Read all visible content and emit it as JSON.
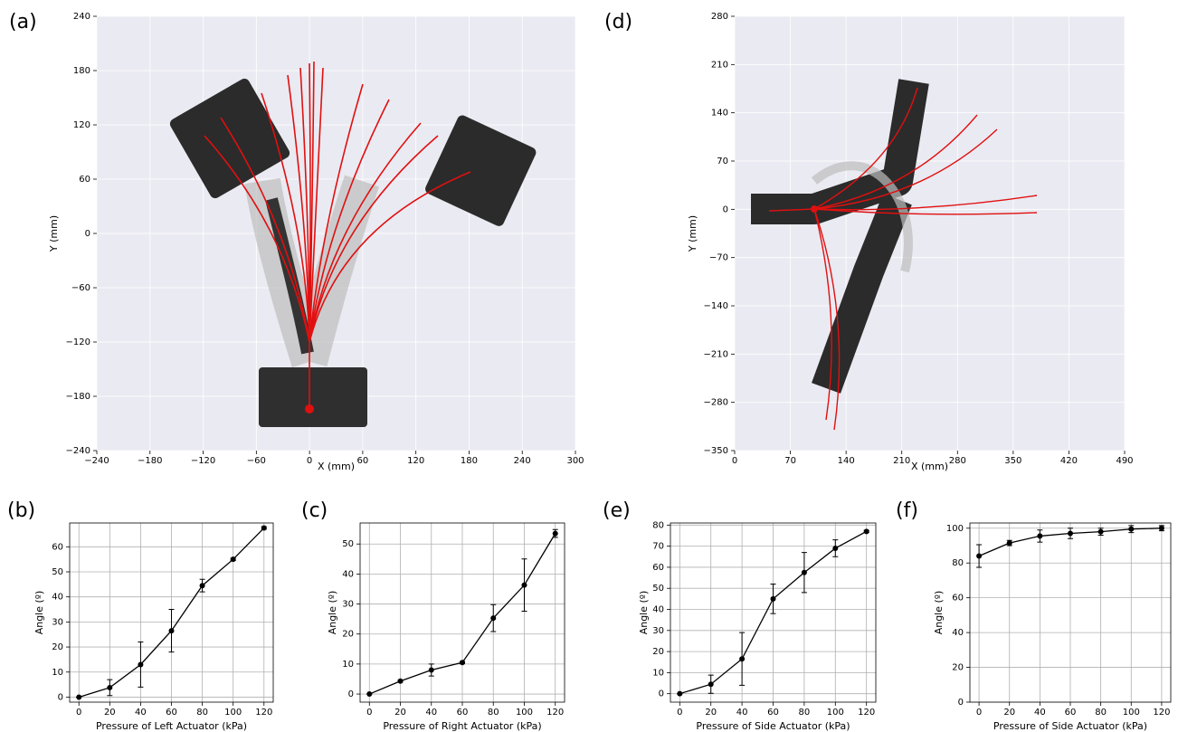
{
  "chart_data": [
    {
      "type": "image",
      "label": "(a)",
      "xlabel": "X (mm)",
      "ylabel": "Y (mm)",
      "xlim": [
        -240,
        300
      ],
      "ylim": [
        -240,
        240
      ],
      "xticks": [
        {
          "value": -240,
          "label": "−240"
        },
        {
          "value": -180,
          "label": "−180"
        },
        {
          "value": -120,
          "label": "−120"
        },
        {
          "value": -60,
          "label": "−60"
        },
        0,
        60,
        120,
        180,
        240,
        300
      ],
      "yticks": [
        {
          "value": -240,
          "label": "−240"
        },
        {
          "value": -180,
          "label": "−180"
        },
        {
          "value": -120,
          "label": "−120"
        },
        {
          "value": -60,
          "label": "−60"
        },
        0,
        60,
        120,
        180,
        240
      ],
      "grid": true
    },
    {
      "type": "line",
      "label": "(b)",
      "xlabel": "Pressure of Left Actuator (kPa)",
      "ylabel": "Angle (º)",
      "color": "#000000",
      "x": [
        0,
        20,
        40,
        60,
        80,
        100,
        120
      ],
      "values": [
        0,
        3.8,
        13,
        26.5,
        44.5,
        55,
        67.5
      ],
      "errors": [
        0,
        3.2,
        9,
        8.5,
        2.5,
        0.5,
        0.5
      ],
      "xlim": [
        -6,
        126
      ],
      "ylim": [
        -2,
        69.5
      ],
      "xticks": [
        0,
        20,
        40,
        60,
        80,
        100,
        120
      ],
      "yticks": [
        0,
        10,
        20,
        30,
        40,
        50,
        60
      ],
      "grid": true
    },
    {
      "type": "line",
      "label": "(c)",
      "xlabel": "Pressure of Right Actuator (kPa)",
      "ylabel": "Angle (º)",
      "color": "#000000",
      "x": [
        0,
        20,
        40,
        60,
        80,
        100,
        120
      ],
      "values": [
        0,
        4.3,
        8,
        10.5,
        25.3,
        36.3,
        53.5
      ],
      "errors": [
        0,
        0.3,
        2,
        0.3,
        4.5,
        8.7,
        1.3
      ],
      "xlim": [
        -6,
        126
      ],
      "ylim": [
        -2.7,
        57
      ],
      "xticks": [
        0,
        20,
        40,
        60,
        80,
        100,
        120
      ],
      "yticks": [
        0,
        10,
        20,
        30,
        40,
        50
      ],
      "grid": true
    },
    {
      "type": "image",
      "label": "(d)",
      "xlabel": "X (mm)",
      "ylabel": "Y (mm)",
      "xlim": [
        0,
        490
      ],
      "ylim": [
        -350,
        280
      ],
      "xticks": [
        0,
        70,
        140,
        210,
        280,
        350,
        420,
        490
      ],
      "yticks": [
        {
          "value": -350,
          "label": "−350"
        },
        {
          "value": -280,
          "label": "−280"
        },
        {
          "value": -210,
          "label": "−210"
        },
        {
          "value": -140,
          "label": "−140"
        },
        {
          "value": -70,
          "label": "−70"
        },
        0,
        70,
        140,
        210,
        280
      ],
      "grid": true
    },
    {
      "type": "line",
      "label": "(e)",
      "xlabel": "Pressure of Side Actuator (kPa)",
      "ylabel": "Angle (º)",
      "color": "#000000",
      "x": [
        0,
        20,
        40,
        60,
        80,
        100,
        120
      ],
      "values": [
        0,
        4.5,
        16.5,
        45,
        57.5,
        69,
        77
      ],
      "errors": [
        0,
        4.3,
        12.5,
        7,
        9.5,
        4,
        0.5
      ],
      "xlim": [
        -6,
        126
      ],
      "ylim": [
        -4,
        81
      ],
      "xticks": [
        0,
        20,
        40,
        60,
        80,
        100,
        120
      ],
      "yticks": [
        0,
        10,
        20,
        30,
        40,
        50,
        60,
        70,
        80
      ],
      "grid": true
    },
    {
      "type": "line",
      "label": "(f)",
      "xlabel": "Pressure of Side Actuator (kPa)",
      "ylabel": "Angle (º)",
      "color": "#000000",
      "x": [
        0,
        20,
        40,
        60,
        80,
        100,
        120
      ],
      "values": [
        84,
        91.5,
        95.5,
        97,
        98,
        99.5,
        100
      ],
      "errors": [
        6.5,
        1.5,
        3.5,
        3,
        2,
        2,
        1.5
      ],
      "xlim": [
        -6,
        126
      ],
      "ylim": [
        0,
        103
      ],
      "xticks": [
        0,
        20,
        40,
        60,
        80,
        100,
        120
      ],
      "yticks": [
        0,
        20,
        40,
        60,
        80,
        100
      ],
      "grid": true
    }
  ]
}
